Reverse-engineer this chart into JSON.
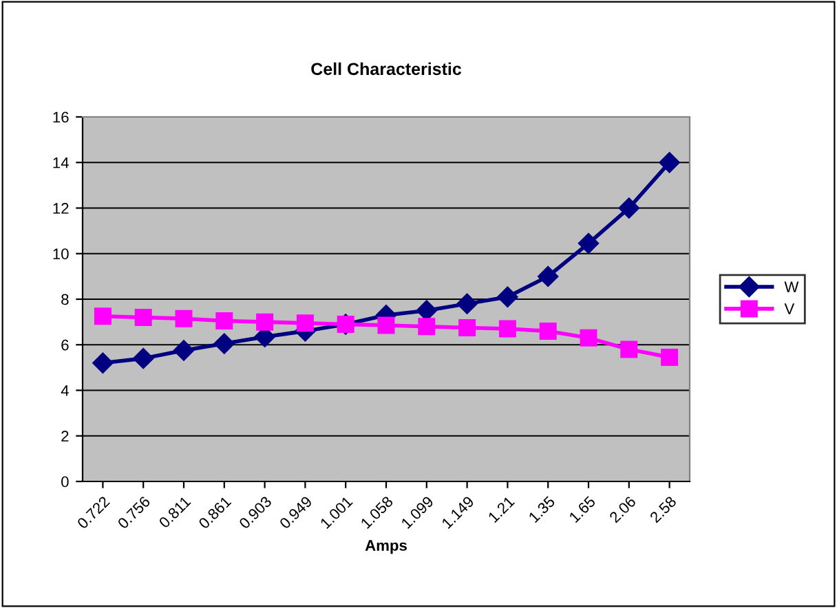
{
  "chart_data": {
    "type": "line",
    "title": "Cell Characteristic",
    "xlabel": "Amps",
    "categories": [
      "0.722",
      "0.756",
      "0.811",
      "0.861",
      "0.903",
      "0.949",
      "1.001",
      "1.058",
      "1.099",
      "1.149",
      "1.21",
      "1.35",
      "1.65",
      "2.06",
      "2.58"
    ],
    "series": [
      {
        "name": "W",
        "color": "#000080",
        "marker": "diamond",
        "values": [
          5.2,
          5.4,
          5.75,
          6.05,
          6.35,
          6.6,
          6.9,
          7.3,
          7.5,
          7.8,
          8.1,
          9.0,
          10.45,
          12.0,
          14.0
        ]
      },
      {
        "name": "V",
        "color": "#ff00ff",
        "marker": "square",
        "values": [
          7.25,
          7.2,
          7.15,
          7.05,
          7.0,
          6.95,
          6.9,
          6.85,
          6.8,
          6.75,
          6.7,
          6.6,
          6.3,
          5.8,
          5.45
        ]
      }
    ],
    "ylim": [
      0,
      16
    ],
    "yticks": [
      0,
      2,
      4,
      6,
      8,
      10,
      12,
      14,
      16
    ],
    "grid": "y",
    "legend": "right",
    "line_style": "solid"
  }
}
